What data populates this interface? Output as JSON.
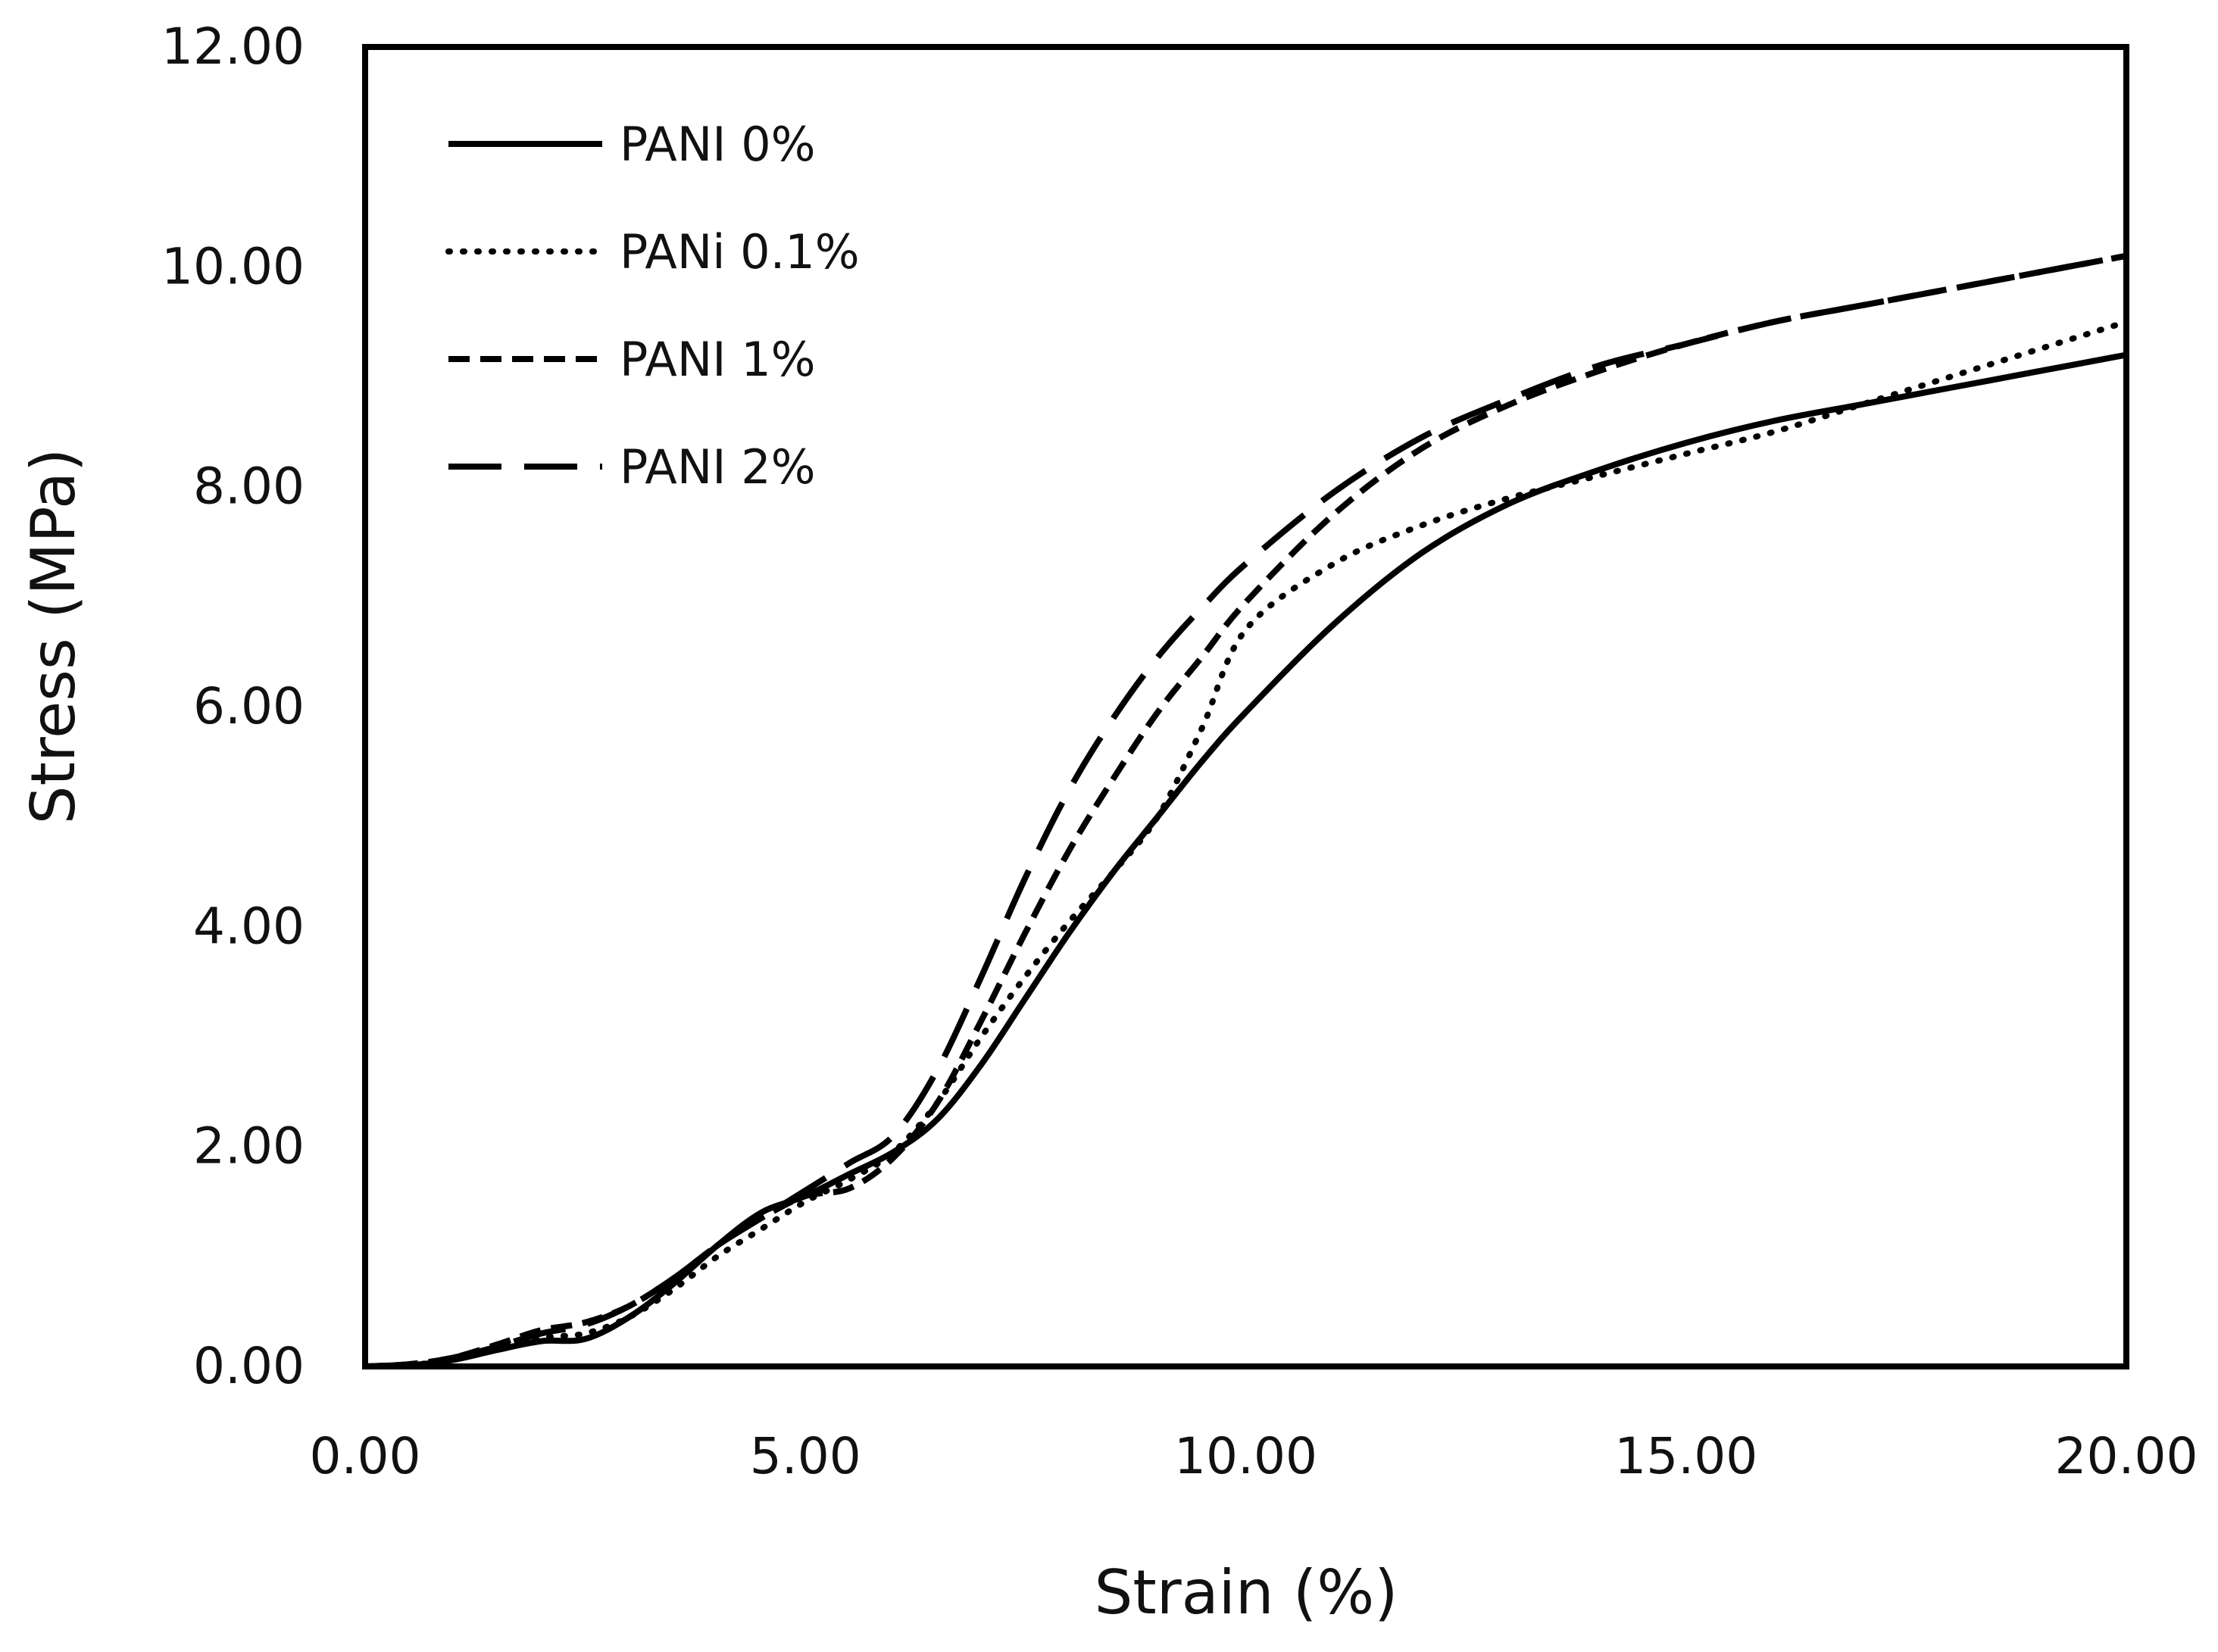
{
  "chart_data": {
    "type": "line",
    "title": "",
    "xlabel": "Strain (%)",
    "ylabel": "Stress (MPa)",
    "xlim": [
      0,
      20
    ],
    "ylim": [
      0,
      12
    ],
    "xticks": [
      0,
      5,
      10,
      15,
      20
    ],
    "yticks": [
      0,
      2,
      4,
      6,
      8,
      10,
      12
    ],
    "xtick_labels": [
      "0.00",
      "5.00",
      "10.00",
      "15.00",
      "20.00"
    ],
    "ytick_labels": [
      "0.00",
      "2.00",
      "4.00",
      "6.00",
      "8.00",
      "10.00",
      "12.00"
    ],
    "grid": false,
    "legend_position": "top-left",
    "series": [
      {
        "name": "PANI 0%",
        "style": "solid",
        "x": [
          0,
          0.5,
          1.0,
          1.5,
          2.0,
          2.5,
          3.0,
          3.5,
          4.0,
          4.5,
          5.0,
          5.5,
          6.0,
          6.5,
          7.0,
          7.5,
          8.0,
          8.5,
          9.0,
          9.5,
          10.0,
          11.0,
          12.0,
          13.0,
          14.0,
          15.0,
          16.0,
          17.0,
          18.0,
          19.0,
          20.0
        ],
        "y": [
          0,
          0.01,
          0.06,
          0.15,
          0.23,
          0.25,
          0.45,
          0.75,
          1.1,
          1.4,
          1.55,
          1.75,
          1.95,
          2.25,
          2.75,
          3.35,
          3.95,
          4.5,
          5.0,
          5.5,
          5.95,
          6.75,
          7.4,
          7.85,
          8.15,
          8.4,
          8.6,
          8.75,
          8.9,
          9.05,
          9.2
        ]
      },
      {
        "name": "PANi 0.1%",
        "style": "dotted",
        "x": [
          0,
          0.5,
          1.0,
          1.5,
          2.0,
          2.5,
          3.0,
          3.5,
          4.0,
          4.5,
          5.0,
          5.5,
          6.0,
          6.5,
          7.0,
          7.5,
          8.0,
          8.5,
          9.0,
          9.5,
          10.0,
          11.0,
          12.0,
          13.0,
          14.0,
          15.0,
          16.0,
          17.0,
          18.0,
          19.0,
          20.0
        ],
        "y": [
          0,
          0.01,
          0.07,
          0.16,
          0.26,
          0.3,
          0.45,
          0.7,
          1.0,
          1.25,
          1.5,
          1.7,
          1.95,
          2.4,
          3.0,
          3.55,
          4.05,
          4.5,
          5.0,
          5.8,
          6.7,
          7.3,
          7.65,
          7.9,
          8.1,
          8.3,
          8.5,
          8.75,
          9.0,
          9.25,
          9.5
        ]
      },
      {
        "name": "PANI 1%",
        "style": "dashed",
        "x": [
          0,
          0.5,
          1.0,
          1.5,
          2.0,
          2.5,
          3.0,
          3.5,
          4.0,
          4.5,
          5.0,
          5.5,
          6.0,
          6.5,
          7.0,
          7.5,
          8.0,
          8.5,
          9.0,
          9.5,
          10.0,
          11.0,
          12.0,
          13.0,
          14.0,
          15.0,
          16.0,
          17.0,
          18.0,
          19.0,
          20.0
        ],
        "y": [
          0,
          0.02,
          0.08,
          0.2,
          0.33,
          0.4,
          0.55,
          0.8,
          1.1,
          1.35,
          1.55,
          1.62,
          1.9,
          2.4,
          3.15,
          3.95,
          4.7,
          5.35,
          5.95,
          6.45,
          6.95,
          7.75,
          8.35,
          8.75,
          9.05,
          9.3,
          9.5,
          9.65,
          9.8,
          9.95,
          10.1
        ]
      },
      {
        "name": "PANI 2%",
        "style": "long-dashed",
        "x": [
          0,
          0.5,
          1.0,
          1.5,
          2.0,
          2.5,
          3.0,
          3.5,
          4.0,
          4.5,
          5.0,
          5.5,
          6.0,
          6.5,
          7.0,
          7.5,
          8.0,
          8.5,
          9.0,
          9.5,
          10.0,
          11.0,
          12.0,
          13.0,
          14.0,
          15.0,
          16.0,
          17.0,
          18.0,
          19.0,
          20.0
        ],
        "y": [
          0,
          0.02,
          0.08,
          0.18,
          0.3,
          0.38,
          0.55,
          0.8,
          1.1,
          1.35,
          1.6,
          1.85,
          2.1,
          2.7,
          3.55,
          4.45,
          5.25,
          5.9,
          6.45,
          6.9,
          7.3,
          7.95,
          8.45,
          8.8,
          9.1,
          9.3,
          9.5,
          9.65,
          9.8,
          9.95,
          10.1
        ]
      }
    ]
  }
}
